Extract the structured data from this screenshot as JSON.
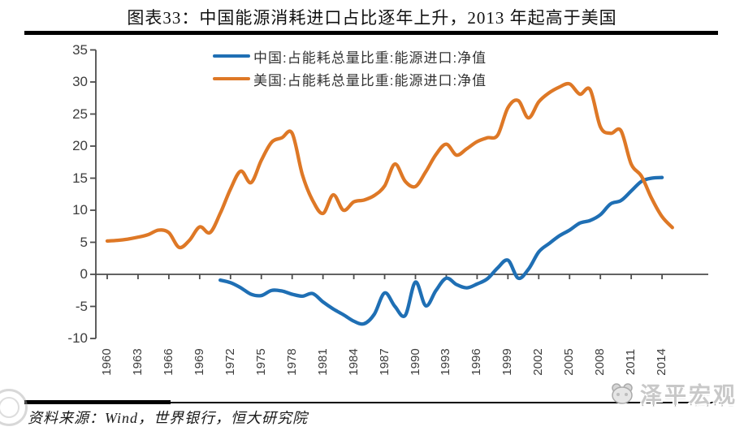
{
  "header": {
    "title": "图表33：中国能源消耗进口占比逐年上升，2013 年起高于美国"
  },
  "footer": {
    "source_line": "资料来源：Wind，世界银行，恒大研究院",
    "brand_watermark": "泽平宏观"
  },
  "colors": {
    "china_line": "#1F6FB4",
    "us_line": "#DE7826",
    "axis": "#4d4d4d",
    "tick_label": "#3d3d3d",
    "watermark_gray": "#c8c8c8"
  },
  "chart_data": {
    "type": "line",
    "title": "图表33：中国能源消耗进口占比逐年上升，2013 年起高于美国",
    "xlabel": "",
    "ylabel": "",
    "ylim": [
      -10,
      35
    ],
    "yticks": [
      35,
      30,
      25,
      20,
      15,
      10,
      5,
      0,
      -5,
      -10
    ],
    "xticks": [
      1960,
      1963,
      1966,
      1969,
      1972,
      1975,
      1978,
      1981,
      1984,
      1987,
      1990,
      1993,
      1996,
      1999,
      2002,
      2005,
      2008,
      2011,
      2014
    ],
    "grid": false,
    "legend_position": "top-center",
    "line_smoothing": true,
    "series": [
      {
        "name": "中国:占能耗总量比重:能源进口:净值",
        "color": "#1F6FB4",
        "year_start": 1971,
        "x_step": 1,
        "values": [
          -0.9,
          -1.3,
          -2.1,
          -3.1,
          -3.3,
          -2.5,
          -2.6,
          -3.1,
          -3.4,
          -3.0,
          -4.3,
          -5.4,
          -6.3,
          -7.3,
          -7.7,
          -6.2,
          -2.9,
          -5.0,
          -6.4,
          -1.2,
          -4.9,
          -2.5,
          -0.6,
          -1.6,
          -2.1,
          -1.5,
          -0.7,
          1.0,
          2.2,
          -0.6,
          0.8,
          3.5,
          4.8,
          6.0,
          6.9,
          8.0,
          8.4,
          9.3,
          11.0,
          11.5,
          13.0,
          14.5,
          15.0,
          15.1
        ]
      },
      {
        "name": "美国:占能耗总量比重:能源进口:净值",
        "color": "#DE7826",
        "year_start": 1960,
        "x_step": 1,
        "values": [
          5.2,
          5.3,
          5.5,
          5.8,
          6.2,
          6.9,
          6.5,
          4.2,
          5.3,
          7.4,
          6.5,
          9.5,
          13.3,
          16.1,
          14.3,
          17.8,
          20.6,
          21.3,
          22.0,
          15.5,
          11.5,
          9.5,
          12.4,
          10.0,
          11.3,
          11.6,
          12.3,
          13.8,
          17.2,
          14.5,
          13.7,
          16.0,
          18.7,
          20.3,
          18.6,
          19.6,
          20.7,
          21.3,
          21.7,
          26.0,
          27.1,
          24.4,
          26.9,
          28.3,
          29.2,
          29.7,
          28.1,
          28.8,
          23.0,
          22.0,
          22.4,
          17.2,
          15.3,
          11.8,
          9.0,
          7.3
        ]
      }
    ]
  }
}
